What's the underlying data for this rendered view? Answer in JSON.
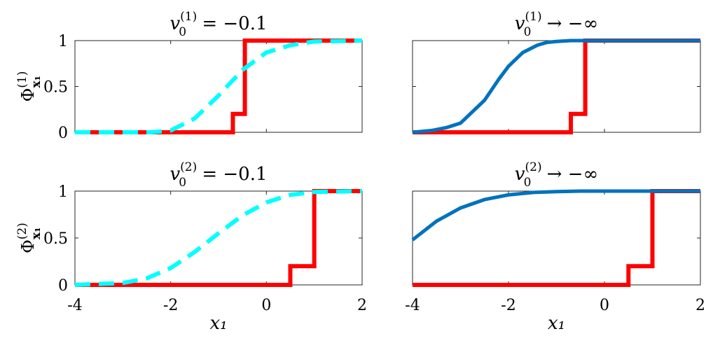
{
  "chart_data": [
    {
      "type": "line",
      "title": "v₀⁽¹⁾ = −0.1",
      "title_parts": {
        "main": "v",
        "sub": "0",
        "sup": "(1)",
        "rest": " = −0.1"
      },
      "ylabel": "Φ",
      "ylabel_sub": "x₁",
      "ylabel_sup": "(1)",
      "xlabel": "",
      "xlim": [
        -4,
        2
      ],
      "ylim": [
        0,
        1
      ],
      "xticks": [],
      "yticks": [
        "0",
        "0.5",
        "1"
      ],
      "grid": false,
      "series": [
        {
          "name": "",
          "color": "#ff0000",
          "style": "solid",
          "x": [
            -4,
            -0.7,
            -0.7,
            -0.45,
            -0.45,
            2
          ],
          "y": [
            0,
            0,
            0.2,
            0.2,
            1,
            1
          ]
        },
        {
          "name": "",
          "color": "#00ffff",
          "style": "dashed",
          "x": [
            -4,
            -2.4,
            -2.0,
            -1.5,
            -1.0,
            -0.5,
            0.0,
            0.5,
            1.0,
            2.0
          ],
          "y": [
            0,
            0,
            0.02,
            0.15,
            0.4,
            0.68,
            0.87,
            0.95,
            0.99,
            1
          ]
        }
      ]
    },
    {
      "type": "line",
      "title": "v₀⁽¹⁾ → −∞",
      "title_parts": {
        "main": "v",
        "sub": "0",
        "sup": "(1)",
        "rest": " → −∞"
      },
      "ylabel": "",
      "xlabel": "",
      "xlim": [
        -4,
        2
      ],
      "ylim": [
        0,
        1
      ],
      "xticks": [],
      "yticks": [
        "0",
        "0.5",
        "1"
      ],
      "grid": false,
      "series": [
        {
          "name": "",
          "color": "#ff0000",
          "style": "solid",
          "x": [
            -4,
            -0.7,
            -0.7,
            -0.4,
            -0.4,
            2
          ],
          "y": [
            0,
            0,
            0.2,
            0.2,
            1,
            1
          ]
        },
        {
          "name": "",
          "color": "#0072bd",
          "style": "solid",
          "x": [
            -4,
            -3.6,
            -3.3,
            -3.0,
            -2.8,
            -2.5,
            -2.2,
            -2.0,
            -1.7,
            -1.4,
            -1.2,
            -1.0,
            -0.7,
            -0.4,
            2
          ],
          "y": [
            0,
            0.02,
            0.05,
            0.1,
            0.2,
            0.35,
            0.58,
            0.72,
            0.87,
            0.95,
            0.98,
            0.99,
            1,
            1,
            1
          ]
        }
      ]
    },
    {
      "type": "line",
      "title": "v₀⁽²⁾ = −0.1",
      "title_parts": {
        "main": "v",
        "sub": "0",
        "sup": "(2)",
        "rest": " = −0.1"
      },
      "ylabel": "Φ",
      "ylabel_sub": "x₁",
      "ylabel_sup": "(2)",
      "xlabel": "x₁",
      "xlim": [
        -4,
        2
      ],
      "ylim": [
        0,
        1
      ],
      "xticks": [
        "-4",
        "-2",
        "0",
        "2"
      ],
      "yticks": [
        "0",
        "0.5",
        "1"
      ],
      "grid": false,
      "series": [
        {
          "name": "",
          "color": "#ff0000",
          "style": "solid",
          "x": [
            -4,
            0.5,
            0.5,
            1.0,
            1.0,
            2
          ],
          "y": [
            0,
            0,
            0.2,
            0.2,
            1,
            1
          ]
        },
        {
          "name": "",
          "color": "#00ffff",
          "style": "dashed",
          "x": [
            -4,
            -3.0,
            -2.5,
            -2.0,
            -1.5,
            -1.0,
            -0.5,
            0.0,
            0.5,
            1.0,
            2.0
          ],
          "y": [
            0,
            0.02,
            0.07,
            0.18,
            0.35,
            0.55,
            0.74,
            0.88,
            0.96,
            0.99,
            1
          ]
        }
      ]
    },
    {
      "type": "line",
      "title": "v₀⁽²⁾ → −∞",
      "title_parts": {
        "main": "v",
        "sub": "0",
        "sup": "(2)",
        "rest": " → −∞"
      },
      "ylabel": "",
      "xlabel": "x₁",
      "xlim": [
        -4,
        2
      ],
      "ylim": [
        0,
        1
      ],
      "xticks": [
        "-4",
        "-2",
        "0",
        "2"
      ],
      "yticks": [
        "0",
        "0.5",
        "1"
      ],
      "grid": false,
      "series": [
        {
          "name": "",
          "color": "#ff0000",
          "style": "solid",
          "x": [
            -4,
            0.5,
            0.5,
            1.0,
            1.0,
            2
          ],
          "y": [
            0,
            0,
            0.2,
            0.2,
            1,
            1
          ]
        },
        {
          "name": "",
          "color": "#0072bd",
          "style": "solid",
          "x": [
            -4,
            -3.5,
            -3.0,
            -2.5,
            -2.0,
            -1.5,
            -1.0,
            -0.5,
            0.0,
            1.0,
            2.0
          ],
          "y": [
            0.48,
            0.68,
            0.82,
            0.91,
            0.96,
            0.985,
            0.995,
            1,
            1,
            1,
            1
          ]
        }
      ]
    }
  ]
}
